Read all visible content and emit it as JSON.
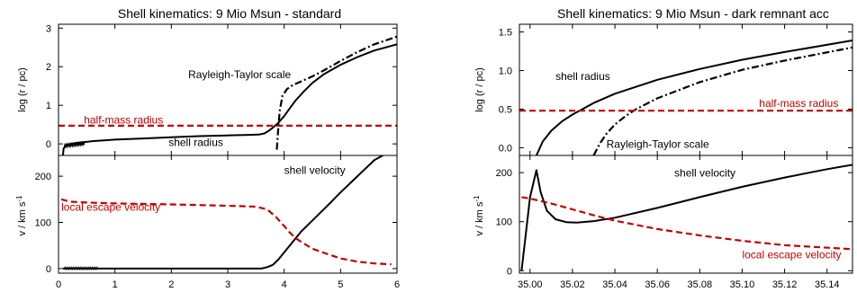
{
  "colors": {
    "black": "#000000",
    "red": "#c00000"
  },
  "chart_data": [
    {
      "panel": "left-top",
      "type": "line",
      "title": "Shell kinematics: 9 Mio Msun - standard",
      "xlabel": "",
      "ylabel": "log (r / pc)",
      "xlim": [
        0,
        6
      ],
      "ylim": [
        -0.3,
        3.1
      ],
      "x_ticks": [
        0,
        1,
        2,
        3,
        4,
        5,
        6
      ],
      "x_tick_labels_shown": false,
      "y_ticks": [
        0,
        1,
        2,
        3
      ],
      "y_tick_labels": [
        "0",
        "1",
        "2",
        "3"
      ],
      "series": [
        {
          "name": "shell radius",
          "style": "solid",
          "color": "#000000",
          "x": [
            0.08,
            0.09,
            0.15,
            0.3,
            0.6,
            1.0,
            1.5,
            2.0,
            2.5,
            3.0,
            3.3,
            3.55,
            3.65,
            3.72,
            3.8,
            3.9,
            4.0,
            4.1,
            4.2,
            4.35,
            4.5,
            4.7,
            5.0,
            5.3,
            5.6,
            6.0
          ],
          "y": [
            -0.3,
            -0.12,
            -0.02,
            0.02,
            0.07,
            0.11,
            0.14,
            0.17,
            0.2,
            0.22,
            0.23,
            0.24,
            0.27,
            0.33,
            0.42,
            0.55,
            0.72,
            0.92,
            1.12,
            1.36,
            1.58,
            1.8,
            2.05,
            2.25,
            2.42,
            2.58
          ]
        },
        {
          "name": "Rayleigh-Taylor scale",
          "style": "dash-dot",
          "color": "#000000",
          "x": [
            3.87,
            3.89,
            3.92,
            3.97,
            4.05,
            4.15,
            4.3,
            4.5,
            4.7,
            5.0,
            5.3,
            5.6,
            6.0
          ],
          "y": [
            -0.15,
            0.3,
            0.85,
            1.25,
            1.42,
            1.52,
            1.62,
            1.75,
            1.9,
            2.15,
            2.38,
            2.58,
            2.78
          ]
        },
        {
          "name": "half-mass radius",
          "style": "dashed",
          "color": "#c00000",
          "x": [
            0,
            6
          ],
          "y": [
            0.47,
            0.47
          ]
        }
      ],
      "annotations": [
        {
          "text": "Rayleigh-Taylor scale",
          "color": "black",
          "x": 2.3,
          "y": 1.7
        },
        {
          "text": "half-mass radius",
          "color": "red",
          "x": 0.45,
          "y": 0.53
        },
        {
          "text": "shell radius",
          "color": "black",
          "x": 1.95,
          "y": -0.05
        }
      ]
    },
    {
      "panel": "left-bottom",
      "type": "line",
      "title": "",
      "xlabel": "",
      "ylabel": "v / km s",
      "ylabel_superscript": "-1",
      "xlim": [
        0,
        6
      ],
      "ylim": [
        -10,
        245
      ],
      "x_ticks": [
        0,
        1,
        2,
        3,
        4,
        5,
        6
      ],
      "x_tick_labels": [
        "0",
        "1",
        "2",
        "3",
        "4",
        "5",
        "6"
      ],
      "y_ticks": [
        0,
        100,
        200
      ],
      "y_tick_labels": [
        "0",
        "100",
        "200"
      ],
      "series": [
        {
          "name": "shell velocity",
          "style": "solid",
          "color": "#000000",
          "x": [
            0.08,
            0.5,
            1.0,
            2.0,
            3.0,
            3.5,
            3.6,
            3.7,
            3.8,
            3.9,
            4.0,
            4.1,
            4.2,
            4.3,
            4.5,
            4.8,
            5.0,
            5.3,
            5.6,
            5.75
          ],
          "y": [
            0,
            0,
            0,
            0,
            0,
            0,
            0,
            3,
            8,
            20,
            35,
            50,
            65,
            80,
            104,
            140,
            165,
            200,
            235,
            245
          ]
        },
        {
          "name": "local escape velocity",
          "style": "dashed",
          "color": "#c00000",
          "x": [
            0.05,
            0.2,
            0.5,
            1.0,
            2.0,
            3.0,
            3.5,
            3.7,
            3.85,
            4.0,
            4.1,
            4.2,
            4.35,
            4.5,
            4.75,
            5.0,
            5.3,
            5.6,
            5.9
          ],
          "y": [
            150,
            145,
            143,
            141,
            139,
            136,
            134,
            128,
            112,
            92,
            78,
            66,
            54,
            43,
            32,
            22,
            15,
            11,
            9
          ]
        }
      ],
      "annotations": [
        {
          "text": "shell velocity",
          "color": "black",
          "x": 4.0,
          "y": 205
        },
        {
          "text": "local escape velocity",
          "color": "red",
          "x": 0.05,
          "y": 125
        }
      ]
    },
    {
      "panel": "right-top",
      "type": "line",
      "title": "Shell kinematics: 9 Mio Msun - dark remnant acc",
      "xlabel": "",
      "ylabel": "log (r / pc)",
      "xlim": [
        34.995,
        35.152
      ],
      "ylim": [
        -0.1,
        1.6
      ],
      "x_ticks": [
        35.0,
        35.02,
        35.04,
        35.06,
        35.08,
        35.1,
        35.12,
        35.14
      ],
      "x_tick_labels_shown": false,
      "y_ticks": [
        0.0,
        0.5,
        1.0,
        1.5
      ],
      "y_tick_labels": [
        "0.0",
        "0.5",
        "1.0",
        "1.5"
      ],
      "series": [
        {
          "name": "shell radius",
          "style": "solid",
          "color": "#000000",
          "x": [
            35.003,
            35.006,
            35.01,
            35.015,
            35.02,
            35.03,
            35.04,
            35.06,
            35.08,
            35.1,
            35.12,
            35.152
          ],
          "y": [
            -0.1,
            0.08,
            0.22,
            0.34,
            0.43,
            0.58,
            0.7,
            0.88,
            1.02,
            1.14,
            1.24,
            1.39
          ]
        },
        {
          "name": "Rayleigh-Taylor scale",
          "style": "dash-dot",
          "color": "#000000",
          "x": [
            35.03,
            35.033,
            35.036,
            35.04,
            35.045,
            35.05,
            35.06,
            35.08,
            35.1,
            35.12,
            35.152
          ],
          "y": [
            -0.1,
            0.06,
            0.18,
            0.3,
            0.41,
            0.5,
            0.64,
            0.85,
            1.01,
            1.13,
            1.3
          ]
        },
        {
          "name": "half-mass radius",
          "style": "dashed",
          "color": "#c00000",
          "x": [
            34.995,
            35.152
          ],
          "y": [
            0.48,
            0.48
          ]
        }
      ],
      "annotations": [
        {
          "text": "shell radius",
          "color": "black",
          "x": 35.012,
          "y": 0.88
        },
        {
          "text": "half-mass radius",
          "color": "red",
          "x": 35.108,
          "y": 0.53
        },
        {
          "text": "Rayleigh-Taylor scale",
          "color": "black",
          "x": 35.036,
          "y": 0.0
        }
      ]
    },
    {
      "panel": "right-bottom",
      "type": "line",
      "title": "",
      "xlabel": "",
      "ylabel": "v / km s",
      "ylabel_superscript": "-1",
      "xlim": [
        34.995,
        35.152
      ],
      "ylim": [
        -5,
        235
      ],
      "x_ticks": [
        35.0,
        35.02,
        35.04,
        35.06,
        35.08,
        35.1,
        35.12,
        35.14
      ],
      "x_tick_labels": [
        "35.00",
        "35.02",
        "35.04",
        "35.06",
        "35.08",
        "35.10",
        "35.12",
        "35.14"
      ],
      "y_ticks": [
        0,
        100,
        200
      ],
      "y_tick_labels": [
        "0",
        "100",
        "200"
      ],
      "series": [
        {
          "name": "shell velocity",
          "style": "solid",
          "color": "#000000",
          "x": [
            34.996,
            35.0,
            35.003,
            35.005,
            35.008,
            35.012,
            35.017,
            35.022,
            35.03,
            35.04,
            35.06,
            35.08,
            35.1,
            35.12,
            35.14,
            35.152
          ],
          "y": [
            0,
            150,
            205,
            160,
            122,
            105,
            99,
            98,
            101,
            108,
            128,
            150,
            171,
            190,
            207,
            216
          ]
        },
        {
          "name": "local escape velocity",
          "style": "dashed",
          "color": "#c00000",
          "x": [
            34.996,
            35.0,
            35.01,
            35.02,
            35.03,
            35.04,
            35.06,
            35.08,
            35.1,
            35.12,
            35.152
          ],
          "y": [
            150,
            147,
            137,
            125,
            113,
            102,
            85,
            72,
            61,
            52,
            44
          ]
        }
      ],
      "annotations": [
        {
          "text": "shell velocity",
          "color": "black",
          "x": 35.068,
          "y": 192
        },
        {
          "text": "local escape velocity",
          "color": "red",
          "x": 35.1,
          "y": 25
        }
      ]
    }
  ]
}
